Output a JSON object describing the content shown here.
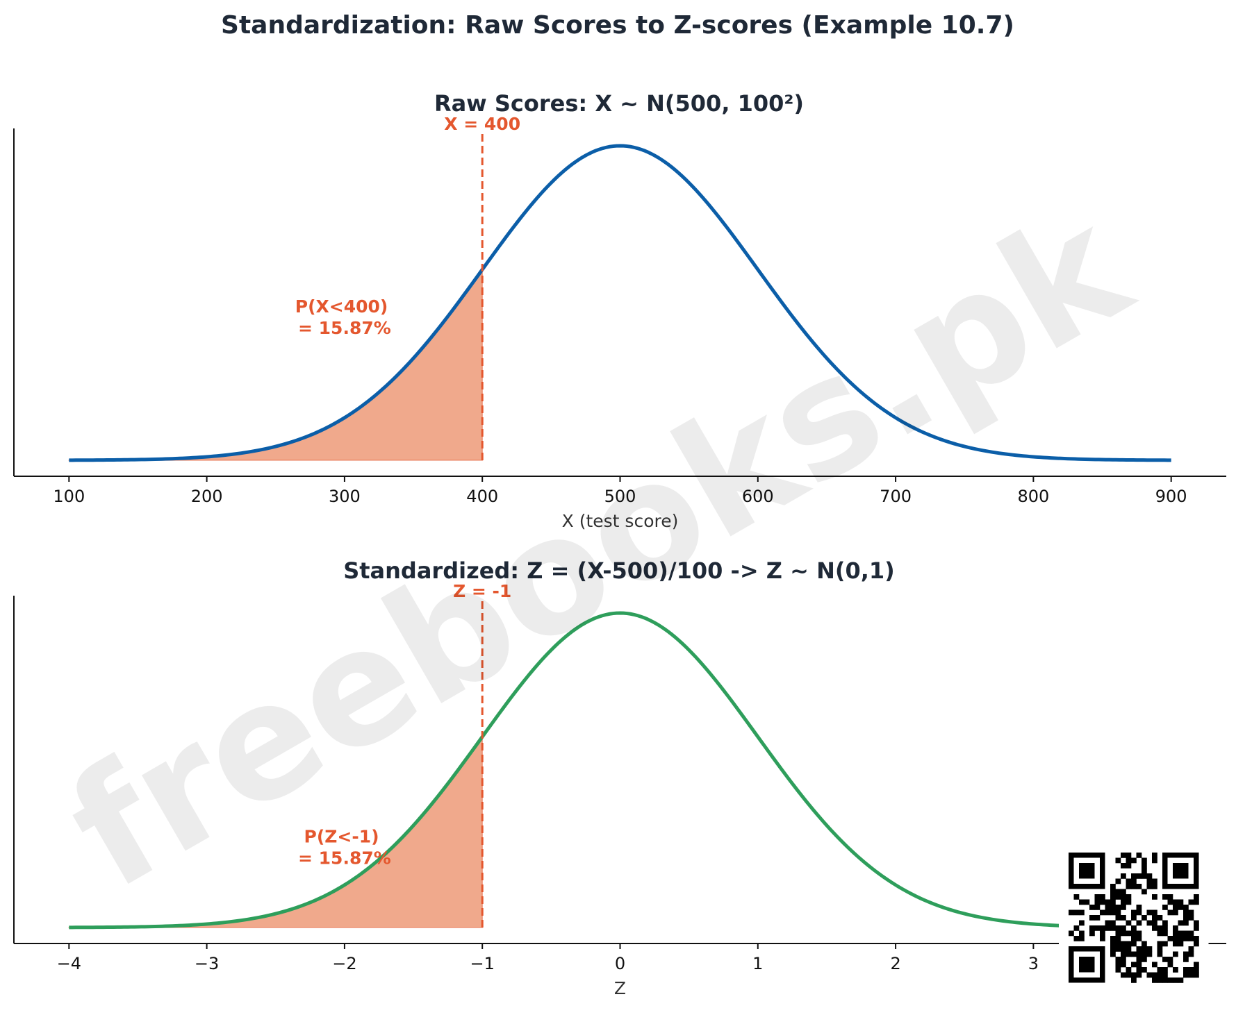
{
  "figure_title": "Standardization: Raw Scores to Z-scores (Example 10.7)",
  "watermark": "freebooks.pk",
  "colors": {
    "raw_curve": "#0b5ea8",
    "z_curve": "#2e9e5b",
    "accent": "#e4572e",
    "shade": "#f0a98c"
  },
  "chart_data": [
    {
      "type": "line",
      "title": "Raw Scores: X ~ N(500, 100²)",
      "xlabel": "X (test score)",
      "ylabel": "",
      "distribution": {
        "mean": 500,
        "sd": 100
      },
      "xlim": [
        60,
        940
      ],
      "x_range": [
        100,
        900
      ],
      "xticks": [
        100,
        200,
        300,
        400,
        500,
        600,
        700,
        800,
        900
      ],
      "xtick_labels": [
        "100",
        "200",
        "300",
        "400",
        "500",
        "600",
        "700",
        "800",
        "900"
      ],
      "cutoff": 400,
      "cutoff_label": "X = 400",
      "shade_below": 400,
      "annotation": [
        "P(X<400)",
        "= 15.87%"
      ],
      "annotation_at": {
        "x": 300,
        "y_fraction_of_peak": 0.47
      }
    },
    {
      "type": "line",
      "title": "Standardized: Z = (X-500)/100  ->  Z ~ N(0,1)",
      "xlabel": "Z",
      "ylabel": "",
      "distribution": {
        "mean": 0,
        "sd": 1
      },
      "xlim": [
        -4.4,
        4.4
      ],
      "x_range": [
        -4,
        4
      ],
      "xticks": [
        -4,
        -3,
        -2,
        -1,
        0,
        1,
        2,
        3
      ],
      "xtick_labels": [
        "−4",
        "−3",
        "−2",
        "−1",
        "0",
        "1",
        "2",
        "3"
      ],
      "cutoff": -1,
      "cutoff_label": "Z = -1",
      "shade_below": -1,
      "annotation": [
        "P(Z<-1)",
        "= 15.87%"
      ],
      "annotation_at": {
        "x": -2,
        "y_fraction_of_peak": 0.27
      }
    }
  ]
}
